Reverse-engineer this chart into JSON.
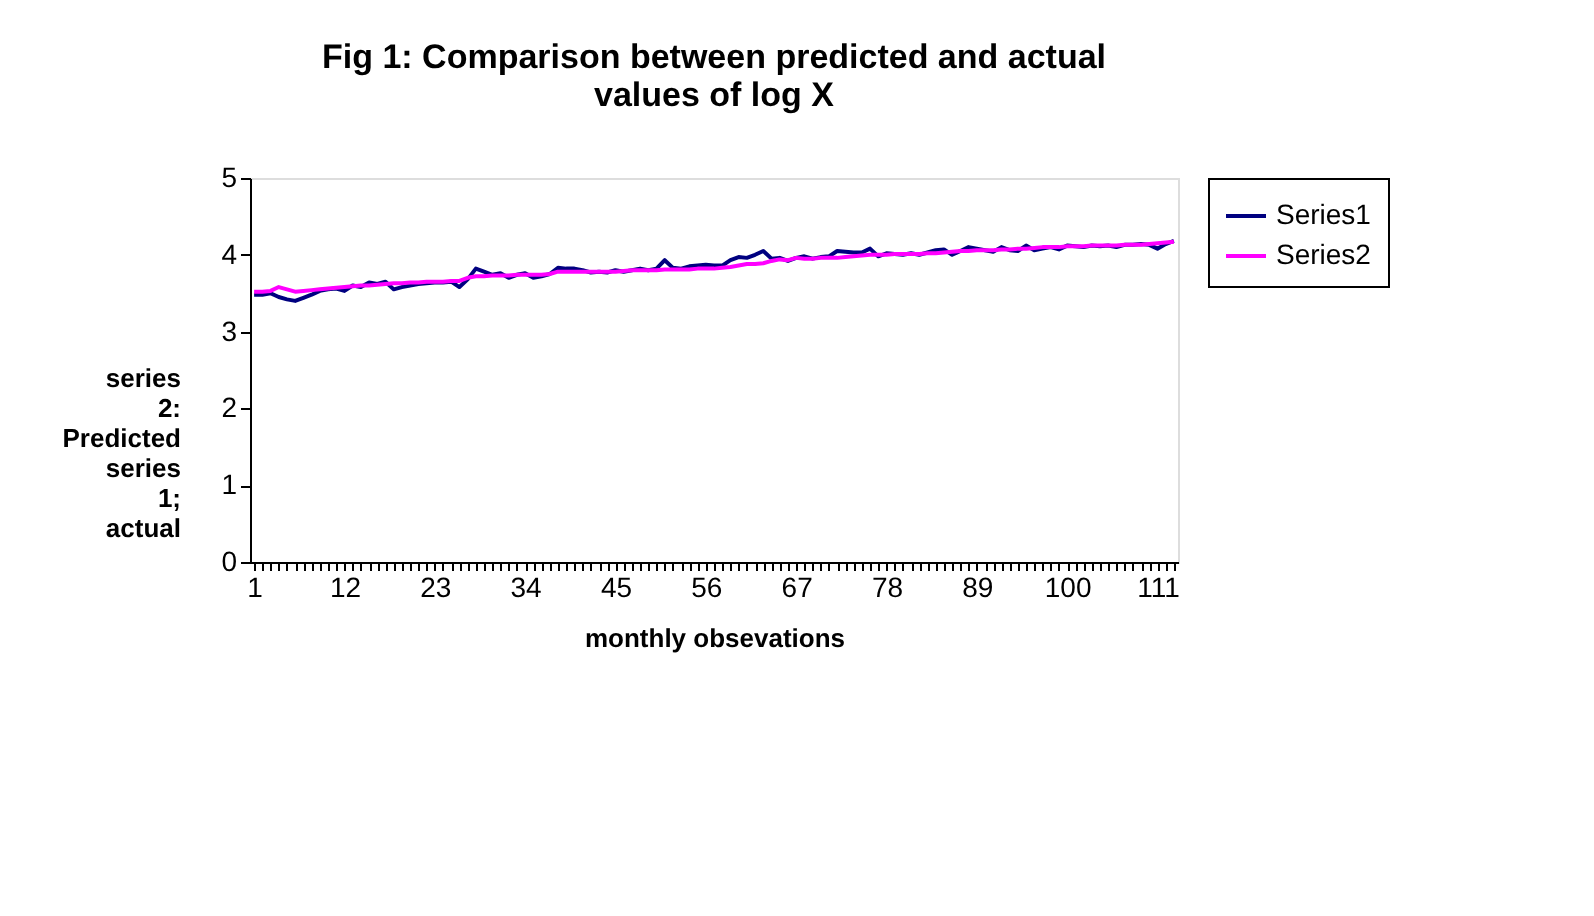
{
  "chart_data": {
    "type": "line",
    "title": "Fig 1: Comparison between predicted and actual values of log X",
    "xlabel": "monthly obsevations",
    "ylabel": "series 2: Predicted series 1; actual",
    "categories": [
      "1",
      null,
      null,
      null,
      null,
      null,
      null,
      null,
      null,
      null,
      null,
      "12",
      null,
      null,
      null,
      null,
      null,
      null,
      null,
      null,
      null,
      null,
      "23",
      null,
      null,
      null,
      null,
      null,
      null,
      null,
      null,
      null,
      null,
      "34",
      null,
      null,
      null,
      null,
      null,
      null,
      null,
      null,
      null,
      null,
      "45",
      null,
      null,
      null,
      null,
      null,
      null,
      null,
      null,
      null,
      null,
      "56",
      null,
      null,
      null,
      null,
      null,
      null,
      null,
      null,
      null,
      null,
      "67",
      null,
      null,
      null,
      null,
      null,
      null,
      null,
      null,
      null,
      null,
      "78",
      null,
      null,
      null,
      null,
      null,
      null,
      null,
      null,
      null,
      null,
      "89",
      null,
      null,
      null,
      null,
      null,
      null,
      null,
      null,
      null,
      null,
      "100",
      null,
      null,
      null,
      null,
      null,
      null,
      null,
      null,
      null,
      null,
      "111",
      null,
      null
    ],
    "series": [
      {
        "name": "Series1",
        "color": "#000080",
        "values": [
          3.48,
          3.48,
          3.5,
          3.45,
          3.42,
          3.4,
          3.44,
          3.48,
          3.53,
          3.55,
          3.56,
          3.53,
          3.6,
          3.58,
          3.64,
          3.62,
          3.65,
          3.55,
          3.58,
          3.6,
          3.62,
          3.63,
          3.64,
          3.64,
          3.65,
          3.58,
          3.68,
          3.82,
          3.78,
          3.74,
          3.76,
          3.7,
          3.74,
          3.76,
          3.7,
          3.72,
          3.75,
          3.83,
          3.82,
          3.82,
          3.8,
          3.77,
          3.78,
          3.77,
          3.8,
          3.78,
          3.8,
          3.82,
          3.8,
          3.82,
          3.93,
          3.83,
          3.82,
          3.85,
          3.86,
          3.87,
          3.86,
          3.86,
          3.93,
          3.97,
          3.96,
          4.0,
          4.05,
          3.95,
          3.96,
          3.92,
          3.96,
          3.98,
          3.95,
          3.97,
          3.98,
          4.05,
          4.04,
          4.03,
          4.03,
          4.08,
          3.98,
          4.02,
          4.01,
          4.0,
          4.02,
          4.0,
          4.03,
          4.06,
          4.07,
          4.0,
          4.05,
          4.1,
          4.08,
          4.06,
          4.04,
          4.1,
          4.06,
          4.05,
          4.12,
          4.06,
          4.08,
          4.1,
          4.07,
          4.12,
          4.11,
          4.1,
          4.12,
          4.11,
          4.12,
          4.1,
          4.13,
          4.13,
          4.14,
          4.13,
          4.08,
          4.14,
          4.18
        ]
      },
      {
        "name": "Series2",
        "color": "#ff00ff",
        "values": [
          3.52,
          3.52,
          3.53,
          3.58,
          3.55,
          3.52,
          3.53,
          3.54,
          3.55,
          3.56,
          3.57,
          3.58,
          3.59,
          3.6,
          3.6,
          3.61,
          3.62,
          3.63,
          3.63,
          3.64,
          3.64,
          3.65,
          3.65,
          3.65,
          3.66,
          3.66,
          3.7,
          3.72,
          3.72,
          3.73,
          3.73,
          3.73,
          3.74,
          3.74,
          3.74,
          3.74,
          3.75,
          3.78,
          3.78,
          3.78,
          3.78,
          3.78,
          3.78,
          3.78,
          3.78,
          3.79,
          3.8,
          3.8,
          3.8,
          3.8,
          3.81,
          3.81,
          3.81,
          3.81,
          3.82,
          3.82,
          3.82,
          3.83,
          3.84,
          3.86,
          3.88,
          3.88,
          3.89,
          3.92,
          3.94,
          3.93,
          3.96,
          3.95,
          3.95,
          3.96,
          3.96,
          3.96,
          3.97,
          3.98,
          3.99,
          4.0,
          4.0,
          4.0,
          4.01,
          4.01,
          4.01,
          4.01,
          4.02,
          4.02,
          4.03,
          4.04,
          4.05,
          4.05,
          4.06,
          4.06,
          4.06,
          4.07,
          4.07,
          4.08,
          4.08,
          4.09,
          4.1,
          4.1,
          4.1,
          4.11,
          4.11,
          4.11,
          4.12,
          4.12,
          4.12,
          4.12,
          4.13,
          4.13,
          4.13,
          4.14,
          4.15,
          4.16,
          4.17
        ]
      }
    ],
    "ylim": [
      0,
      5
    ],
    "yticks": [
      0,
      1,
      2,
      3,
      4,
      5
    ],
    "grid": false,
    "legend": "right",
    "marker": "none",
    "line_style": "solid"
  }
}
